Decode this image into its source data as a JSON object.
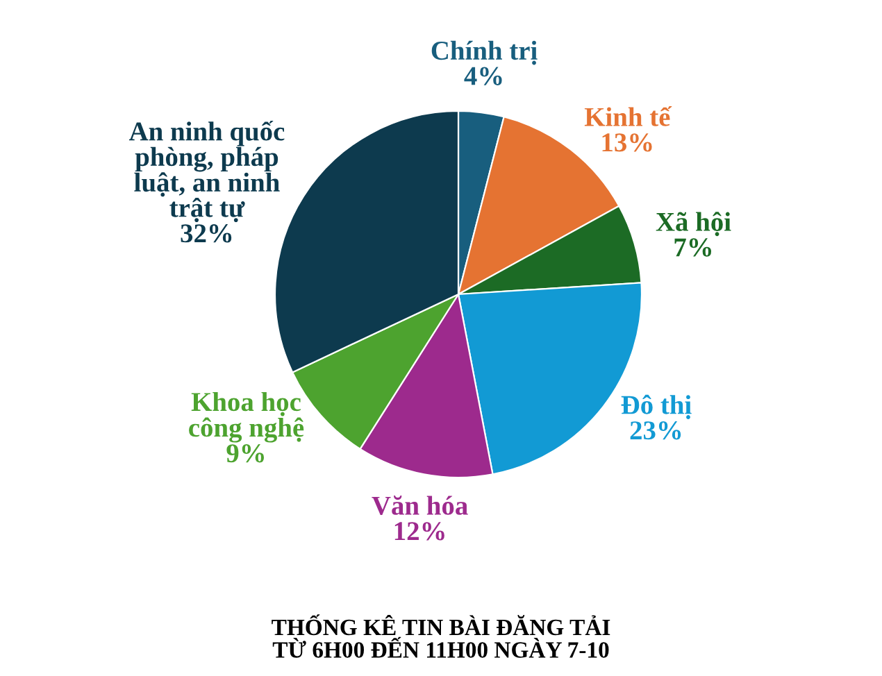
{
  "chart_data": {
    "type": "pie",
    "title": "THỐNG KÊ TIN BÀI ĐĂNG TẢI\nTỪ 6H00 ĐẾN 11H00 NGÀY 7-10",
    "categories": [
      "Chính trị",
      "Kinh tế",
      "Xã hội",
      "Đô thị",
      "Văn hóa",
      "Khoa học\ncông nghệ",
      "An ninh quốc\nphòng, pháp\nluật, an ninh\ntrật tự"
    ],
    "values": [
      4,
      13,
      7,
      23,
      12,
      9,
      32
    ],
    "value_labels": [
      "4%",
      "13%",
      "7%",
      "23%",
      "12%",
      "9%",
      "32%"
    ],
    "colors": [
      "#185e7e",
      "#e57332",
      "#1c6b25",
      "#129ad4",
      "#9d2a8d",
      "#4da32f",
      "#0d3a4e"
    ]
  }
}
